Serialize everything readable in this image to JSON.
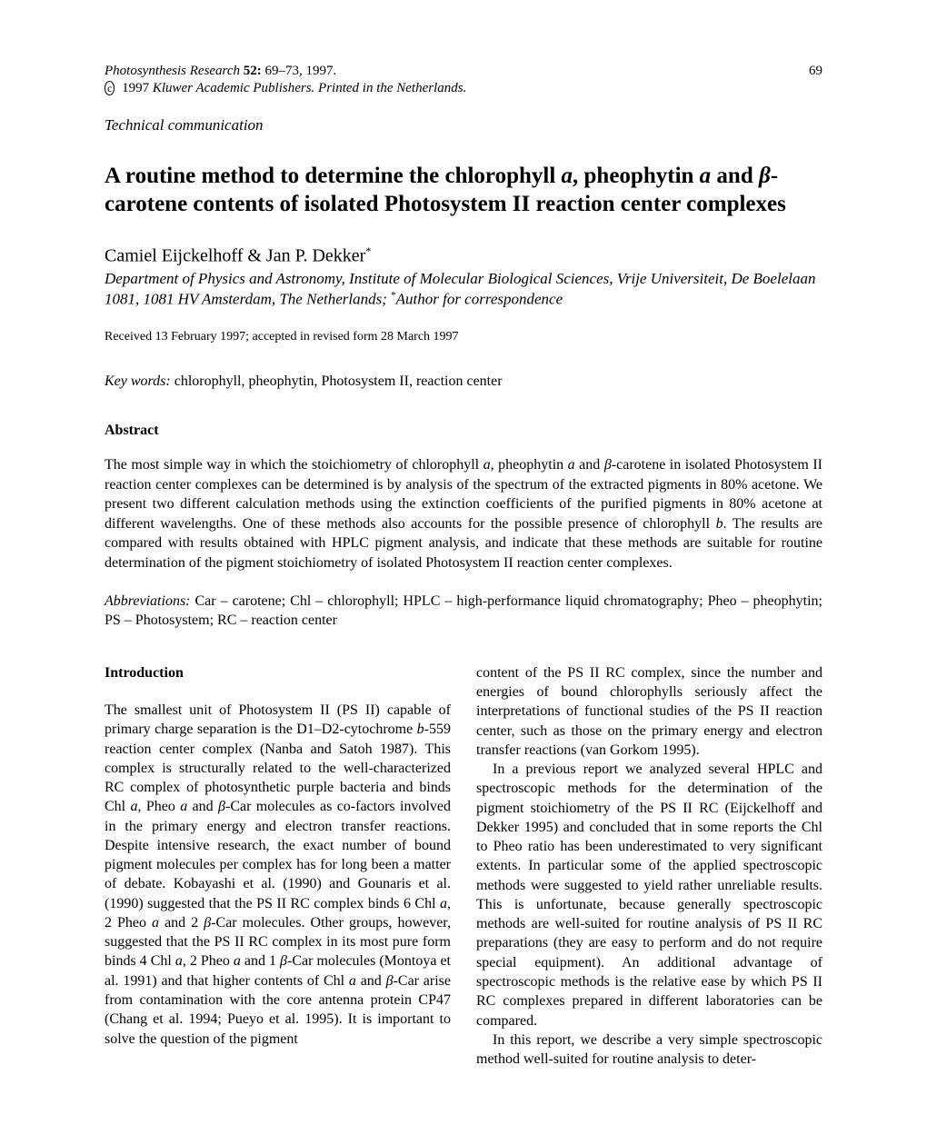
{
  "header": {
    "journal": "Photosynthesis Research",
    "volume": "52:",
    "pages": "69–73, 1997.",
    "page_number": "69",
    "copyright_year": "1997",
    "publisher": "Kluwer Academic Publishers. Printed in the Netherlands."
  },
  "article_type": "Technical communication",
  "title": {
    "part1": "A routine method to determine the chlorophyll ",
    "italic1": "a",
    "part2": ", pheophytin ",
    "italic2": "a",
    "part3": " and ",
    "italic3": "β",
    "part4": "-carotene contents of isolated Photosystem II reaction center complexes"
  },
  "authors": "Camiel Eijckelhoff & Jan P. Dekker",
  "author_note": "*",
  "affiliation": {
    "text1": "Department of Physics and Astronomy, Institute of Molecular Biological Sciences, Vrije Universiteit, De Boelelaan 1081, 1081 HV Amsterdam, The Netherlands; ",
    "note_marker": "*",
    "text2": "Author for correspondence"
  },
  "dates": "Received 13 February 1997; accepted in revised form 28 March 1997",
  "keywords": {
    "label": "Key words:",
    "text": " chlorophyll, pheophytin, Photosystem II, reaction center"
  },
  "abstract": {
    "heading": "Abstract",
    "text": "The most simple way in which the stoichiometry of chlorophyll a, pheophytin a and β-carotene in isolated Photosystem II reaction center complexes can be determined is by analysis of the spectrum of the extracted pigments in 80% acetone. We present two different calculation methods using the extinction coefficients of the purified pigments in 80% acetone at different wavelengths. One of these methods also accounts for the possible presence of chlorophyll b. The results are compared with results obtained with HPLC pigment analysis, and indicate that these methods are suitable for routine determination of the pigment stoichiometry of isolated Photosystem II reaction center complexes."
  },
  "abbreviations": {
    "label": "Abbreviations:",
    "text": " Car – carotene;  Chl – chlorophyll;  HPLC – high-performance liquid chromatography;  Pheo – pheophytin; PS – Photosystem; RC – reaction center"
  },
  "introduction": {
    "heading": "Introduction",
    "col1_p1": "The smallest unit of Photosystem II (PS II) capable of primary charge separation is the D1–D2-cytochrome b-559 reaction center complex (Nanba and Satoh 1987). This complex is structurally related to the well-characterized RC complex of photosynthetic purple bacteria and binds Chl a, Pheo a and β-Car molecules as co-factors involved in the primary energy and electron transfer reactions. Despite intensive research, the exact number of bound pigment molecules per complex has for long been a matter of debate. Kobayashi et al. (1990) and Gounaris et al. (1990) suggested that the PS II RC complex binds 6 Chl a, 2 Pheo a and 2 β-Car molecules. Other groups, however, suggested that the PS II RC complex in its most pure form binds 4 Chl a, 2 Pheo a and 1 β-Car molecules (Montoya et al. 1991) and that higher contents of Chl a and β-Car arise from contamination with the core antenna protein CP47 (Chang et al. 1994; Pueyo et al. 1995). It is important to solve the question of the pigment",
    "col2_p1": "content of the PS II RC complex, since the number and energies of bound chlorophylls seriously affect the interpretations of functional studies of the PS II reaction center, such as those on the primary energy and electron transfer reactions (van Gorkom 1995).",
    "col2_p2": "In a previous report we analyzed several HPLC and spectroscopic methods for the determination of the pigment stoichiometry of the PS II RC (Eijckelhoff and Dekker 1995) and concluded that in some reports the Chl to Pheo ratio has been underestimated to very significant extents. In particular some of the applied spectroscopic methods were suggested to yield rather unreliable results. This is unfortunate, because generally spectroscopic methods are well-suited for routine analysis of PS II RC preparations (they are easy to perform and do not require special equipment). An additional advantage of spectroscopic methods is the relative ease by which PS II RC complexes prepared in different laboratories can be compared.",
    "col2_p3": "In this report, we describe a very simple spectroscopic method well-suited for routine analysis to deter-"
  }
}
